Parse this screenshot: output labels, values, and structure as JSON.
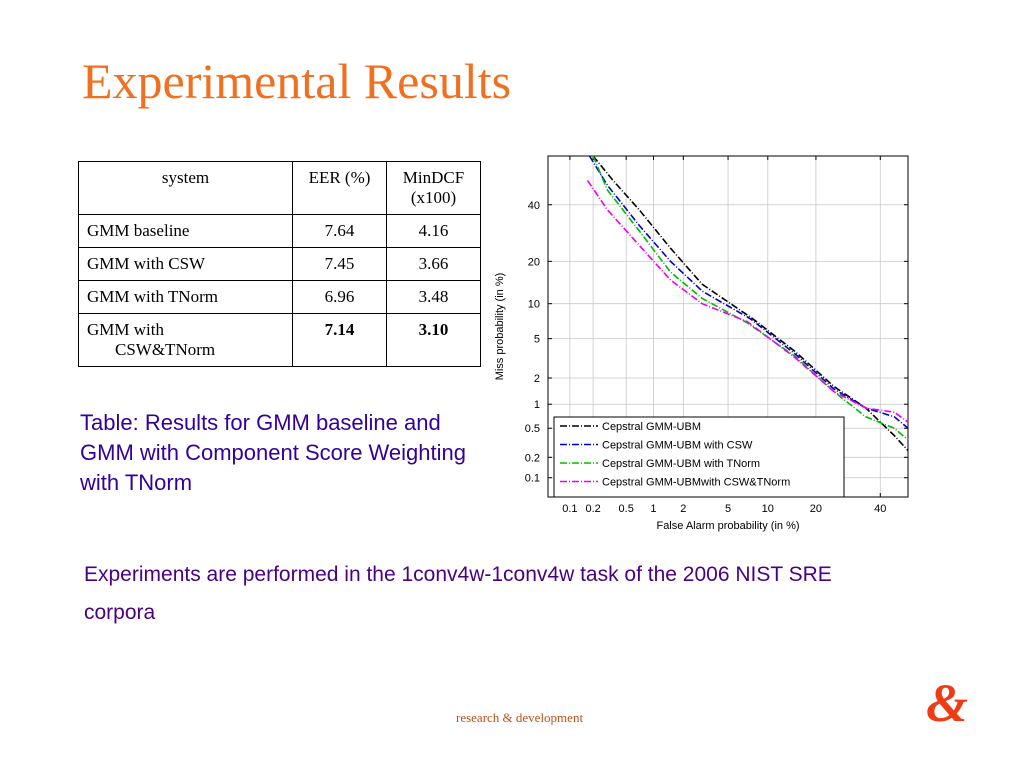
{
  "slide": {
    "title": "Experimental Results",
    "caption": "Table: Results for GMM baseline and GMM with Component Score Weighting with TNorm",
    "note": "Experiments are performed  in the 1conv4w-1conv4w task of the 2006 NIST SRE corpora",
    "footer": "research & development",
    "logo": "&"
  },
  "table": {
    "headers": [
      "system",
      "EER (%)",
      "MinDCF (x100)"
    ],
    "rows": [
      {
        "system": "GMM baseline",
        "eer": "7.64",
        "mindcf": "4.16"
      },
      {
        "system": "GMM with CSW",
        "eer": "7.45",
        "mindcf": "3.66"
      },
      {
        "system": "GMM with TNorm",
        "eer": "6.96",
        "mindcf": "3.48"
      },
      {
        "system_line1": "GMM with",
        "system_line2": "CSW&TNorm",
        "eer": "7.14",
        "mindcf": "3.10"
      }
    ]
  },
  "colors": {
    "title": "#f07021",
    "caption": "#330099",
    "note": "#4b0082",
    "footer": "#c0501c",
    "logo": "#f03c14"
  },
  "chart_data": {
    "type": "line",
    "scale": "probit",
    "xlabel": "False Alarm probability (in %)",
    "ylabel": "Miss probability (in %)",
    "xticks": [
      0.1,
      0.2,
      0.5,
      1,
      2,
      5,
      10,
      20,
      40
    ],
    "xtick_labels": [
      "0.1",
      "0.2",
      "0.5",
      "1",
      "2",
      "5",
      "10",
      "20",
      "40"
    ],
    "yticks": [
      0.1,
      0.2,
      0.5,
      1,
      2,
      5,
      10,
      20,
      40
    ],
    "ytick_labels": [
      "0.1",
      "0.2",
      "0.5",
      "1",
      "2",
      "5",
      "10",
      "20",
      "40"
    ],
    "xlim": [
      0.05,
      50
    ],
    "ylim": [
      0.05,
      60
    ],
    "grid": true,
    "legend_position": "bottom-left",
    "series": [
      {
        "name": "Cepstral GMM-UBM",
        "color": "#000000",
        "dash": "7,2,1,2",
        "points": [
          [
            0.2,
            60
          ],
          [
            0.35,
            50
          ],
          [
            0.7,
            38
          ],
          [
            1.5,
            24
          ],
          [
            3,
            14
          ],
          [
            7.7,
            7.6
          ],
          [
            15,
            3.8
          ],
          [
            25,
            1.6
          ],
          [
            35,
            0.9
          ],
          [
            45,
            0.4
          ],
          [
            50,
            0.25
          ]
        ]
      },
      {
        "name": "Cepstral GMM-UBM with CSW",
        "color": "#0000cc",
        "dash": "7,2,1,2",
        "points": [
          [
            0.18,
            60
          ],
          [
            0.3,
            48
          ],
          [
            0.7,
            32
          ],
          [
            1.5,
            20
          ],
          [
            3,
            12.5
          ],
          [
            7.5,
            7.5
          ],
          [
            15,
            3.6
          ],
          [
            25,
            1.5
          ],
          [
            35,
            0.9
          ],
          [
            45,
            0.7
          ],
          [
            50,
            0.5
          ]
        ]
      },
      {
        "name": "Cepstral GMM-UBM with TNorm",
        "color": "#00bb00",
        "dash": "7,2,1,2",
        "points": [
          [
            0.2,
            60
          ],
          [
            0.3,
            46
          ],
          [
            0.7,
            30
          ],
          [
            1.5,
            17
          ],
          [
            3,
            11
          ],
          [
            7,
            7
          ],
          [
            15,
            3.4
          ],
          [
            25,
            1.4
          ],
          [
            35,
            0.7
          ],
          [
            45,
            0.5
          ],
          [
            50,
            0.35
          ]
        ]
      },
      {
        "name": "Cepstral GMM-UBMwith CSW&TNorm",
        "color": "#ee00ee",
        "dash": "7,2,1,2",
        "points": [
          [
            0.17,
            50
          ],
          [
            0.3,
            38
          ],
          [
            0.7,
            25
          ],
          [
            1.5,
            15
          ],
          [
            3,
            10
          ],
          [
            7.1,
            7.1
          ],
          [
            15,
            3.3
          ],
          [
            25,
            1.4
          ],
          [
            35,
            0.9
          ],
          [
            45,
            0.8
          ],
          [
            50,
            0.6
          ]
        ]
      }
    ]
  }
}
